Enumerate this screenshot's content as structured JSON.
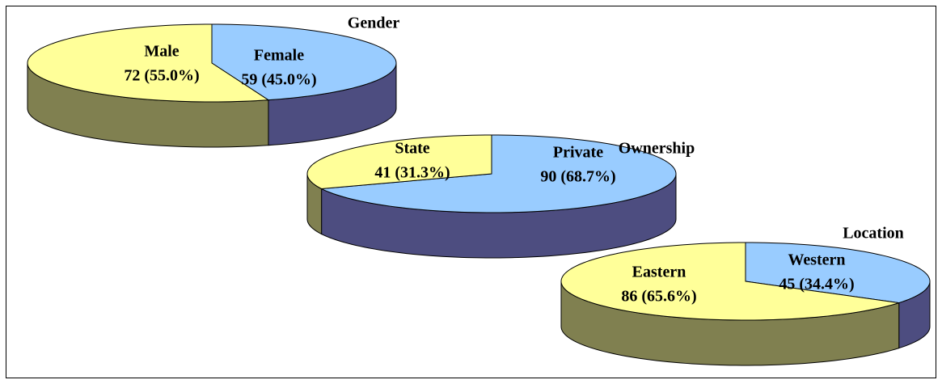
{
  "chart_data": [
    {
      "type": "pie3d",
      "title": "Gender",
      "categories": [
        "Female",
        "Male"
      ],
      "values": [
        59,
        72
      ],
      "value_labels": [
        "59 (45.0%)",
        "72 (55.0%)"
      ],
      "colors": [
        "#99ccff",
        "#ffff99"
      ],
      "side_colors": [
        "#4d4d80",
        "#808050"
      ]
    },
    {
      "type": "pie3d",
      "title": "Ownership",
      "categories": [
        "Private",
        "State"
      ],
      "values": [
        90,
        41
      ],
      "value_labels": [
        "90 (68.7%)",
        "41 (31.3%)"
      ],
      "colors": [
        "#99ccff",
        "#ffff99"
      ],
      "side_colors": [
        "#4d4d80",
        "#808050"
      ]
    },
    {
      "type": "pie3d",
      "title": "Location",
      "categories": [
        "Western",
        "Eastern"
      ],
      "values": [
        45,
        86
      ],
      "value_labels": [
        "45 (34.4%)",
        "86 (65.6%)"
      ],
      "colors": [
        "#99ccff",
        "#ffff99"
      ],
      "side_colors": [
        "#4d4d80",
        "#808050"
      ]
    }
  ]
}
